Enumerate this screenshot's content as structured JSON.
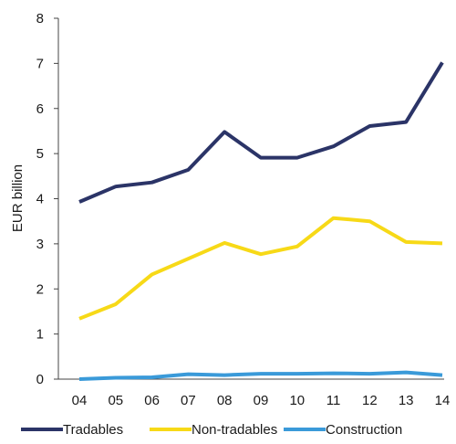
{
  "chart_data": {
    "type": "line",
    "title": "",
    "xlabel": "",
    "ylabel": "EUR billion",
    "categories": [
      "04",
      "05",
      "06",
      "07",
      "08",
      "09",
      "10",
      "11",
      "12",
      "13",
      "14"
    ],
    "ylim": [
      0,
      8
    ],
    "yticks": [
      0,
      1,
      2,
      3,
      4,
      5,
      6,
      7,
      8
    ],
    "grid": false,
    "legend_position": "bottom",
    "series": [
      {
        "name": "Tradables",
        "color": "#2b3467",
        "values": [
          3.93,
          4.27,
          4.36,
          4.64,
          5.48,
          4.91,
          4.91,
          5.16,
          5.61,
          5.7,
          7.02
        ]
      },
      {
        "name": "Non-tradables",
        "color": "#f7d917",
        "values": [
          1.34,
          1.66,
          2.32,
          2.67,
          3.02,
          2.77,
          2.94,
          3.57,
          3.5,
          3.04,
          3.01
        ]
      },
      {
        "name": "Construction",
        "color": "#3a9ad9",
        "values": [
          0.0,
          0.03,
          0.04,
          0.11,
          0.09,
          0.12,
          0.12,
          0.13,
          0.12,
          0.15,
          0.09
        ]
      }
    ]
  }
}
